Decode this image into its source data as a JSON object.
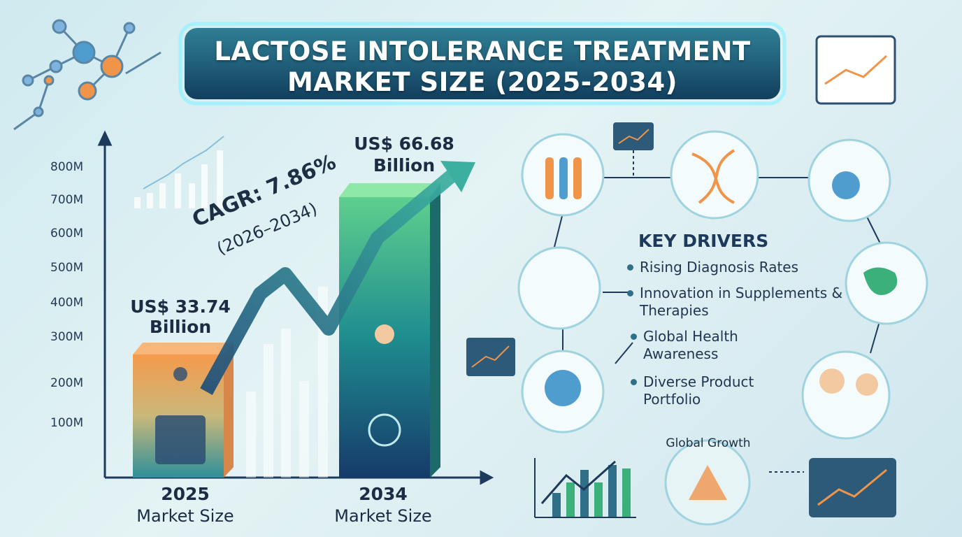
{
  "title": {
    "line1": "LACTOSE INTOLERANCE TREATMENT",
    "line2": "MARKET SIZE (2025-2034)"
  },
  "chart": {
    "y_axis_labels": [
      "800M",
      "700M",
      "600M",
      "500M",
      "400M",
      "300M",
      "200M",
      "100M"
    ],
    "cagr": "CAGR: 7.86%",
    "cagr_period": "(2026–2034)",
    "bars": [
      {
        "value_label": "US$ 33.74",
        "unit": "Billion",
        "year": "2025",
        "caption": "Market Size"
      },
      {
        "value_label": "US$ 66.68",
        "unit": "Billion",
        "year": "2034",
        "caption": "Market Size"
      }
    ]
  },
  "key_drivers": {
    "heading": "KEY DRIVERS",
    "items": [
      "Rising Diagnosis Rates",
      "Innovation in Supplements & Therapies",
      "Global Health Awareness",
      "Diverse Product Portfolio"
    ]
  },
  "footer_label": "Global Growth"
}
